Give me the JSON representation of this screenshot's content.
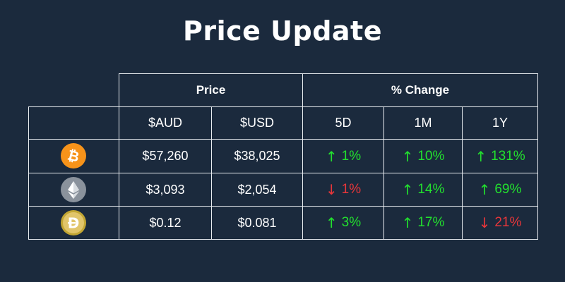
{
  "title": "Price Update",
  "headers": {
    "price": "Price",
    "change": "% Change",
    "aud": "$AUD",
    "usd": "$USD",
    "d5": "5D",
    "m1": "1M",
    "y1": "1Y"
  },
  "colors": {
    "up": "#22e02e",
    "down": "#e8363a",
    "background": "#1b2a3d"
  },
  "rows": [
    {
      "coin": "bitcoin-icon",
      "aud": "$57,260",
      "usd": "$38,025",
      "d5": {
        "dir": "up",
        "value": "1%"
      },
      "m1": {
        "dir": "up",
        "value": "10%"
      },
      "y1": {
        "dir": "up",
        "value": "131%"
      }
    },
    {
      "coin": "ethereum-icon",
      "aud": "$3,093",
      "usd": "$2,054",
      "d5": {
        "dir": "down",
        "value": "1%"
      },
      "m1": {
        "dir": "up",
        "value": "14%"
      },
      "y1": {
        "dir": "up",
        "value": "69%"
      }
    },
    {
      "coin": "dogecoin-icon",
      "aud": "$0.12",
      "usd": "$0.081",
      "d5": {
        "dir": "up",
        "value": "3%"
      },
      "m1": {
        "dir": "up",
        "value": "17%"
      },
      "y1": {
        "dir": "down",
        "value": "21%"
      }
    }
  ]
}
